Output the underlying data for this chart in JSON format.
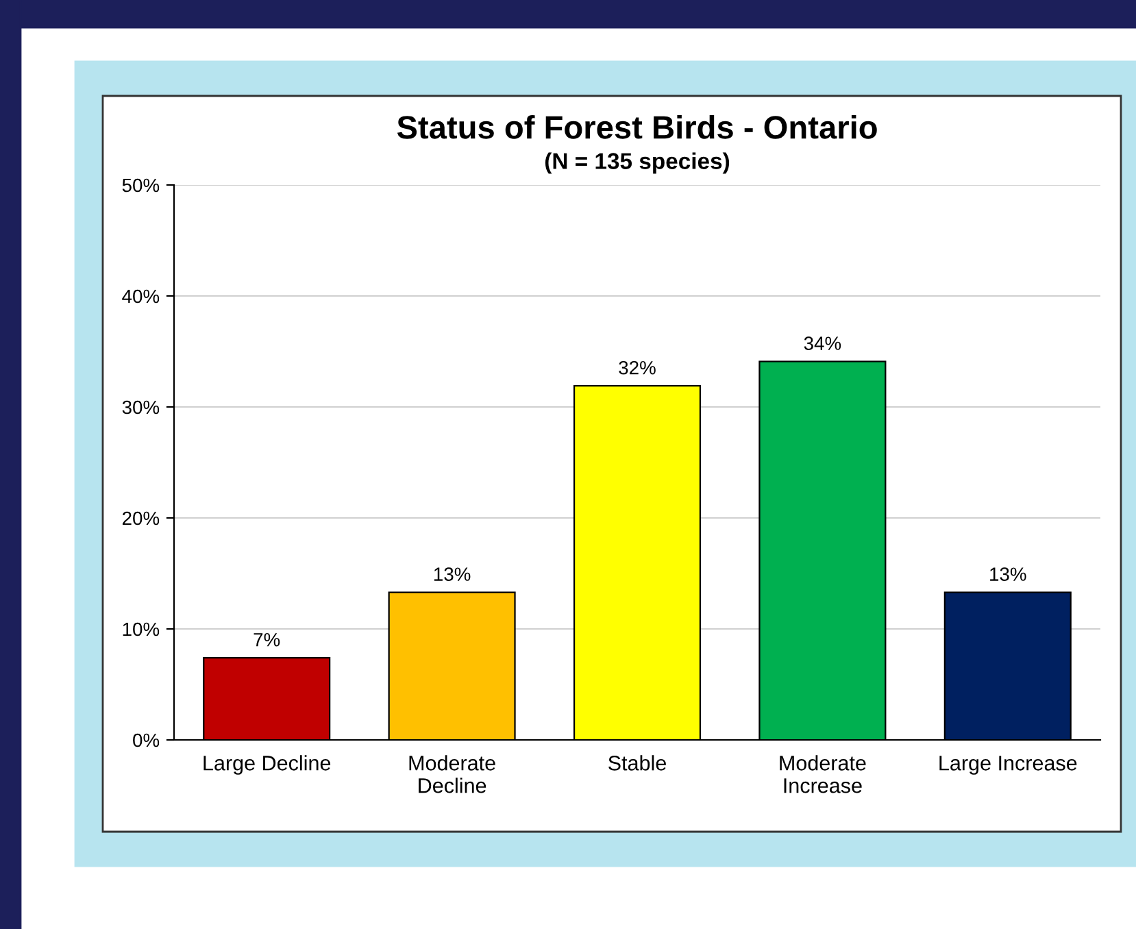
{
  "chart_data": {
    "type": "bar",
    "title": "Status of Forest Birds - Ontario",
    "subtitle": "(N = 135 species)",
    "categories": [
      "Large Decline",
      "Moderate\nDecline",
      "Stable",
      "Moderate\nIncrease",
      "Large Increase"
    ],
    "values": [
      7.4,
      13.3,
      31.9,
      34.1,
      13.3
    ],
    "value_labels": [
      "7%",
      "13%",
      "32%",
      "34%",
      "13%"
    ],
    "colors": [
      "#c00000",
      "#ffc000",
      "#ffff00",
      "#00b050",
      "#002060"
    ],
    "ylim": [
      0,
      50
    ],
    "yticks": [
      {
        "value": 0,
        "label": "0%"
      },
      {
        "value": 10,
        "label": "10%"
      },
      {
        "value": 20,
        "label": "20%"
      },
      {
        "value": 30,
        "label": "30%"
      },
      {
        "value": 40,
        "label": "40%"
      },
      {
        "value": 50,
        "label": "50%"
      }
    ],
    "grid": "y",
    "legend": false
  }
}
